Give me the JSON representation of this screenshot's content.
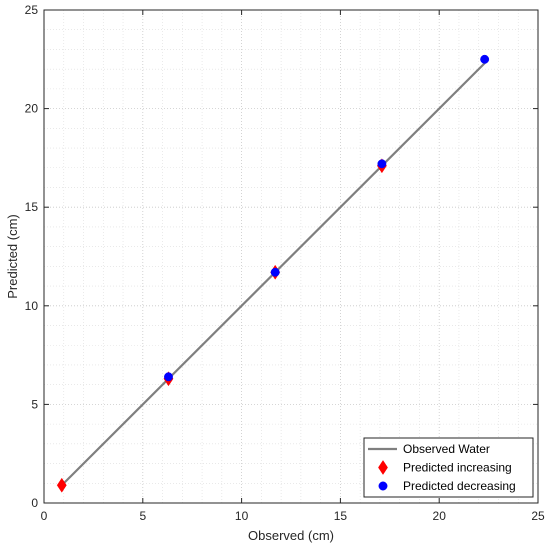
{
  "chart_data": {
    "type": "scatter",
    "xlabel": "Observed (cm)",
    "ylabel": "Predicted (cm)",
    "xlim": [
      0,
      25
    ],
    "ylim": [
      0,
      25
    ],
    "xticks": [
      0,
      5,
      10,
      15,
      20,
      25
    ],
    "yticks": [
      0,
      5,
      10,
      15,
      20,
      25
    ],
    "grid": true,
    "minor_grid": true,
    "legend_position": "bottom-right",
    "series": [
      {
        "name": "Observed Water",
        "kind": "line",
        "color": "#7f7f7f",
        "x": [
          0.9,
          22.4
        ],
        "y": [
          0.9,
          22.4
        ]
      },
      {
        "name": "Predicted increasing",
        "kind": "marker",
        "marker": "diamond",
        "color": "#ff0000",
        "x": [
          0.9,
          6.3,
          11.7,
          17.1
        ],
        "y": [
          0.9,
          6.3,
          11.7,
          17.1
        ]
      },
      {
        "name": "Predicted decreasing",
        "kind": "marker",
        "marker": "circle",
        "color": "#0000ff",
        "x": [
          6.3,
          11.7,
          17.1,
          22.3
        ],
        "y": [
          6.4,
          11.7,
          17.2,
          22.5
        ]
      }
    ]
  }
}
